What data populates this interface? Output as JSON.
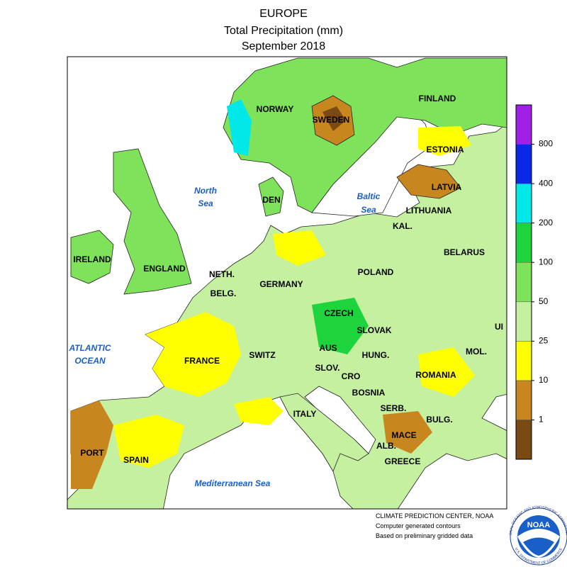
{
  "header": {
    "title": "EUROPE",
    "subtitle": "Total Precipitation (mm)",
    "period": "September 2018"
  },
  "map": {
    "labels": [
      "NORWAY",
      "SWEDEN",
      "FINLAND",
      "ESTONIA",
      "LATVIA",
      "LITHUANIA",
      "KAL.",
      "BELARUS",
      "DEN",
      "IRELAND",
      "ENGLAND",
      "NETH.",
      "BELG.",
      "GERMANY",
      "POLAND",
      "CZECH",
      "SLOVAK",
      "UI",
      "MOL.",
      "AUS",
      "HUNG.",
      "SWITZ",
      "FRANCE",
      "SLOV.",
      "CRO",
      "ROMANIA",
      "BOSNIA",
      "SERB.",
      "ITALY",
      "BULG.",
      "MACE",
      "ALB.",
      "GREECE",
      "PORT",
      "SPAIN"
    ],
    "seas": [
      "North",
      "Sea",
      "Baltic",
      "Sea",
      "ATLANTIC",
      "OCEAN",
      "Mediterranean Sea"
    ]
  },
  "legend": {
    "ticks": [
      1,
      10,
      25,
      50,
      100,
      200,
      400,
      800
    ],
    "colors": [
      "#7a4a12",
      "#c8861e",
      "#ffff00",
      "#c4f0a0",
      "#7ee35a",
      "#1ed43c",
      "#00e8e8",
      "#0a28e6",
      "#a020e6"
    ]
  },
  "credits": {
    "lines": [
      "CLIMATE PREDICTION CENTER, NOAA",
      "Computer generated contours",
      "Based on preliminary gridded data"
    ],
    "logo": {
      "name": "NOAA",
      "ring_top": "NATIONAL OCEANIC AND ATMOSPHERIC ADMINISTRATION",
      "ring_bottom": "U.S. DEPARTMENT OF COMMERCE"
    }
  }
}
